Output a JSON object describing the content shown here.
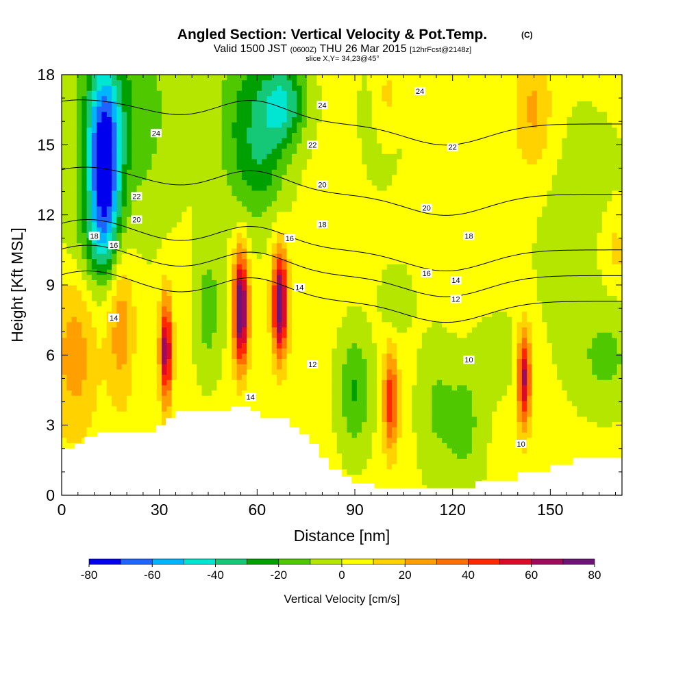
{
  "title": "Angled Section: Vertical Velocity & Pot.Temp.",
  "title_mark": "(C)",
  "subtitle_main": "Valid 1500 JST",
  "subtitle_utc": "(0600Z)",
  "subtitle_date": "THU 26 Mar 2015",
  "subtitle_fcst": "[12hrFcst@2148z]",
  "slice_label": "slice X,Y= 34,23@45°",
  "chart_data": {
    "type": "heatmap",
    "xlabel": "Distance [nm]",
    "ylabel": "Height [Kft MSL]",
    "xlim": [
      0,
      172
    ],
    "ylim": [
      0,
      18
    ],
    "x_ticks": [
      0,
      30,
      60,
      90,
      120,
      150
    ],
    "y_ticks": [
      0,
      3,
      6,
      9,
      12,
      15,
      18
    ],
    "colorbar": {
      "label": "Vertical Velocity [cm/s]",
      "ticks": [
        -80,
        -60,
        -40,
        -20,
        0,
        20,
        40,
        60,
        80
      ],
      "levels": [
        -80,
        -70,
        -60,
        -50,
        -40,
        -30,
        -20,
        -10,
        0,
        10,
        20,
        30,
        40,
        50,
        60,
        70,
        80
      ],
      "colors": [
        "#0000ee",
        "#1e64ff",
        "#00b4ff",
        "#00e6d2",
        "#14c878",
        "#00a000",
        "#50c800",
        "#b4e600",
        "#ffff00",
        "#ffd200",
        "#ffa000",
        "#ff6e00",
        "#ff2800",
        "#dc0a28",
        "#a00a5a",
        "#6e1478"
      ]
    },
    "terrain": [
      [
        0,
        2.0
      ],
      [
        4,
        2.0
      ],
      [
        4,
        2.2
      ],
      [
        7,
        2.2
      ],
      [
        7,
        2.5
      ],
      [
        11,
        2.5
      ],
      [
        11,
        2.7
      ],
      [
        29,
        2.7
      ],
      [
        29,
        3.0
      ],
      [
        32,
        3.0
      ],
      [
        32,
        3.3
      ],
      [
        35,
        3.3
      ],
      [
        35,
        3.6
      ],
      [
        52,
        3.6
      ],
      [
        52,
        3.8
      ],
      [
        58,
        3.8
      ],
      [
        58,
        3.6
      ],
      [
        61,
        3.6
      ],
      [
        61,
        3.3
      ],
      [
        70,
        3.3
      ],
      [
        70,
        2.9
      ],
      [
        73,
        2.9
      ],
      [
        73,
        2.6
      ],
      [
        76,
        2.6
      ],
      [
        76,
        2.2
      ],
      [
        79,
        2.2
      ],
      [
        79,
        1.6
      ],
      [
        82,
        1.6
      ],
      [
        82,
        1.1
      ],
      [
        86,
        1.1
      ],
      [
        86,
        0.8
      ],
      [
        89,
        0.8
      ],
      [
        89,
        0.5
      ],
      [
        96,
        0.5
      ],
      [
        96,
        0.3
      ],
      [
        127,
        0.3
      ],
      [
        127,
        0.6
      ],
      [
        140,
        0.6
      ],
      [
        140,
        1.0
      ],
      [
        150,
        1.0
      ],
      [
        150,
        1.3
      ],
      [
        157,
        1.3
      ],
      [
        157,
        1.6
      ],
      [
        172,
        1.6
      ]
    ],
    "velocity_cells": [
      {
        "x": 13,
        "y": 14.0,
        "sx": 3.5,
        "sy": 2.8,
        "w": -78
      },
      {
        "x": 18,
        "y": 16.5,
        "sx": 12,
        "sy": 3.5,
        "w": -22
      },
      {
        "x": 10,
        "y": 10.8,
        "sx": 6,
        "sy": 1.2,
        "w": -12
      },
      {
        "x": 57,
        "y": 16.0,
        "sx": 7,
        "sy": 2.8,
        "w": -25
      },
      {
        "x": 68,
        "y": 16.8,
        "sx": 5,
        "sy": 1.3,
        "w": -40
      },
      {
        "x": 62,
        "y": 14.0,
        "sx": 5,
        "sy": 1.5,
        "w": -14
      },
      {
        "x": 100,
        "y": 16.0,
        "sx": 6,
        "sy": 2.5,
        "w": -12
      },
      {
        "x": 103,
        "y": 8.5,
        "sx": 3.5,
        "sy": 1.0,
        "w": -14
      },
      {
        "x": 45,
        "y": 8.0,
        "sx": 3,
        "sy": 2.0,
        "w": -18
      },
      {
        "x": 90,
        "y": 4.5,
        "sx": 3.5,
        "sy": 1.8,
        "w": -24
      },
      {
        "x": 115,
        "y": 3.8,
        "sx": 4,
        "sy": 2.2,
        "w": -14
      },
      {
        "x": 124,
        "y": 3.0,
        "sx": 4,
        "sy": 2.0,
        "w": -16
      },
      {
        "x": 133,
        "y": 6.0,
        "sx": 4,
        "sy": 1.2,
        "w": -10
      },
      {
        "x": 167,
        "y": 5.8,
        "sx": 7,
        "sy": 1.5,
        "w": -14
      },
      {
        "x": 158,
        "y": 11.8,
        "sx": 14,
        "sy": 4,
        "w": -7
      },
      {
        "x": 120,
        "y": 13.0,
        "sx": 16,
        "sy": 3,
        "w": 6
      },
      {
        "x": 4,
        "y": 6.0,
        "sx": 5,
        "sy": 2.5,
        "w": 22
      },
      {
        "x": 18,
        "y": 7.5,
        "sx": 3,
        "sy": 2.5,
        "w": 24
      },
      {
        "x": 32,
        "y": 6.2,
        "sx": 1.3,
        "sy": 1.6,
        "w": 65
      },
      {
        "x": 55,
        "y": 8.0,
        "sx": 1.6,
        "sy": 1.7,
        "w": 82
      },
      {
        "x": 67,
        "y": 8.2,
        "sx": 1.6,
        "sy": 1.6,
        "w": 78
      },
      {
        "x": 101,
        "y": 4.0,
        "sx": 1.6,
        "sy": 1.5,
        "w": 45
      },
      {
        "x": 142,
        "y": 5.0,
        "sx": 1.4,
        "sy": 1.5,
        "w": 60
      },
      {
        "x": 100,
        "y": 17.0,
        "sx": 3,
        "sy": 1.5,
        "w": 18
      },
      {
        "x": 145,
        "y": 16.5,
        "sx": 4,
        "sy": 1.8,
        "w": 20
      },
      {
        "x": 170,
        "y": 10.5,
        "sx": 3,
        "sy": 1.2,
        "w": 14
      }
    ],
    "contour_levels": [
      10,
      12,
      14,
      16,
      18,
      20,
      22,
      24
    ],
    "contour_labels": [
      {
        "text": "24",
        "x": 29,
        "y": 15.5
      },
      {
        "text": "24",
        "x": 80,
        "y": 16.7
      },
      {
        "text": "24",
        "x": 110,
        "y": 17.3
      },
      {
        "text": "22",
        "x": 23,
        "y": 12.8
      },
      {
        "text": "22",
        "x": 77,
        "y": 15.0
      },
      {
        "text": "22",
        "x": 120,
        "y": 14.9
      },
      {
        "text": "20",
        "x": 23,
        "y": 11.8
      },
      {
        "text": "20",
        "x": 80,
        "y": 13.3
      },
      {
        "text": "20",
        "x": 112,
        "y": 12.3
      },
      {
        "text": "18",
        "x": 10,
        "y": 11.1
      },
      {
        "text": "18",
        "x": 80,
        "y": 11.6
      },
      {
        "text": "18",
        "x": 125,
        "y": 11.1
      },
      {
        "text": "16",
        "x": 16,
        "y": 10.7
      },
      {
        "text": "16",
        "x": 70,
        "y": 11.0
      },
      {
        "text": "16",
        "x": 112,
        "y": 9.5
      },
      {
        "text": "14",
        "x": 16,
        "y": 7.6
      },
      {
        "text": "14",
        "x": 73,
        "y": 8.9
      },
      {
        "text": "14",
        "x": 121,
        "y": 9.2
      },
      {
        "text": "14",
        "x": 58,
        "y": 4.2
      },
      {
        "text": "12",
        "x": 121,
        "y": 8.4
      },
      {
        "text": "12",
        "x": 77,
        "y": 5.6
      },
      {
        "text": "10",
        "x": 125,
        "y": 5.8
      },
      {
        "text": "10",
        "x": 141,
        "y": 2.2
      }
    ]
  }
}
